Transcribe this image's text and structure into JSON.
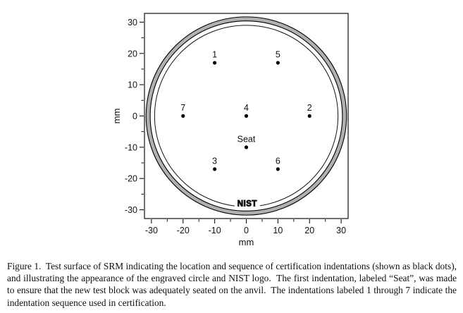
{
  "chart_data": {
    "type": "scatter",
    "title": "",
    "xlabel": "mm",
    "ylabel": "mm",
    "xlim": [
      -32.2,
      32.2
    ],
    "ylim": [
      -32.8,
      32.8
    ],
    "xticks": [
      -30,
      -20,
      -10,
      0,
      10,
      20,
      30
    ],
    "yticks": [
      -30,
      -20,
      -10,
      0,
      10,
      20,
      30
    ],
    "xticks_minor": [
      -25,
      -15,
      -5,
      5,
      15,
      25
    ],
    "yticks_minor": [
      -25,
      -15,
      -5,
      5,
      15,
      25
    ],
    "grid": false,
    "legend": "none",
    "points": [
      {
        "label": "1",
        "x": -10,
        "y": 17
      },
      {
        "label": "2",
        "x": 20,
        "y": 0
      },
      {
        "label": "3",
        "x": -10,
        "y": -17
      },
      {
        "label": "4",
        "x": 0,
        "y": 0
      },
      {
        "label": "5",
        "x": 10,
        "y": 17
      },
      {
        "label": "6",
        "x": 10,
        "y": -17
      },
      {
        "label": "7",
        "x": -20,
        "y": 0
      },
      {
        "label": "Seat",
        "x": 0,
        "y": -10
      }
    ],
    "point_color": "#000000",
    "engraved_circle_radius": 29,
    "block_edge_ring": {
      "outer_radius": 31.7,
      "inner_radius": 30.4,
      "fill_color": "#b0b0b0",
      "edge_color": "#000000"
    },
    "logo": {
      "text": "NIST",
      "x": 0.3,
      "y": -28
    }
  },
  "caption": {
    "text": "Figure 1.  Test surface of SRM indicating the location and sequence of certification indentations (shown as black dots), and illustrating the appearance of the engraved circle and NIST logo.  The first indentation, labeled “Seat”, was made to ensure that the new test block was adequately seated on the anvil.  The indentations labeled 1 through 7 indicate the indentation sequence used in certification."
  }
}
